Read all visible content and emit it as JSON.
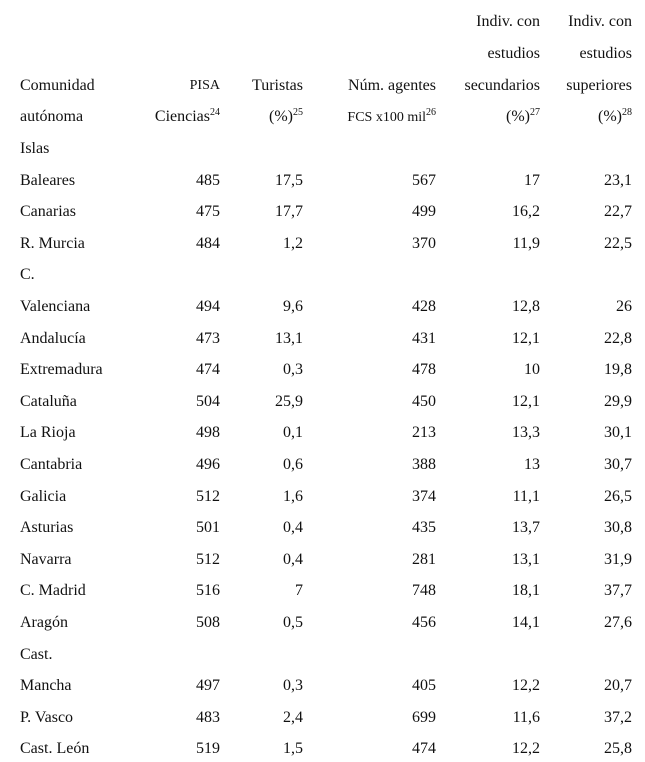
{
  "table": {
    "header": [
      {
        "lines": [
          "Comunidad",
          "autónoma"
        ]
      },
      {
        "lines": [
          "PISA",
          "Ciencias"
        ],
        "note": "24"
      },
      {
        "lines": [
          "Turistas",
          "(%)"
        ],
        "note": "25"
      },
      {
        "lines": [
          "Núm. agentes",
          "FCS x100 mil"
        ],
        "note": "26"
      },
      {
        "lines": [
          "Indiv. con",
          "estudios",
          "secundarios",
          "(%)"
        ],
        "note": "27"
      },
      {
        "lines": [
          "Indiv. con",
          "estudios",
          "superiores",
          "(%)"
        ],
        "note": "28"
      }
    ],
    "rows": [
      {
        "label": [
          "Islas",
          "Baleares"
        ],
        "values": [
          "485",
          "17,5",
          "567",
          "17",
          "23,1"
        ]
      },
      {
        "label": [
          "Canarias"
        ],
        "values": [
          "475",
          "17,7",
          "499",
          "16,2",
          "22,7"
        ]
      },
      {
        "label": [
          "R. Murcia"
        ],
        "values": [
          "484",
          "1,2",
          "370",
          "11,9",
          "22,5"
        ]
      },
      {
        "label": [
          "C.",
          "Valenciana"
        ],
        "values": [
          "494",
          "9,6",
          "428",
          "12,8",
          "26"
        ]
      },
      {
        "label": [
          "Andalucía"
        ],
        "values": [
          "473",
          "13,1",
          "431",
          "12,1",
          "22,8"
        ]
      },
      {
        "label": [
          "Extremadura"
        ],
        "values": [
          "474",
          "0,3",
          "478",
          "10",
          "19,8"
        ]
      },
      {
        "label": [
          "Cataluña"
        ],
        "values": [
          "504",
          "25,9",
          "450",
          "12,1",
          "29,9"
        ]
      },
      {
        "label": [
          "La Rioja"
        ],
        "values": [
          "498",
          "0,1",
          "213",
          "13,3",
          "30,1"
        ]
      },
      {
        "label": [
          "Cantabria"
        ],
        "values": [
          "496",
          "0,6",
          "388",
          "13",
          "30,7"
        ]
      },
      {
        "label": [
          "Galicia"
        ],
        "values": [
          "512",
          "1,6",
          "374",
          "11,1",
          "26,5"
        ]
      },
      {
        "label": [
          "Asturias"
        ],
        "values": [
          "501",
          "0,4",
          "435",
          "13,7",
          "30,8"
        ]
      },
      {
        "label": [
          "Navarra"
        ],
        "values": [
          "512",
          "0,4",
          "281",
          "13,1",
          "31,9"
        ]
      },
      {
        "label": [
          "C. Madrid"
        ],
        "values": [
          "516",
          "7",
          "748",
          "18,1",
          "37,7"
        ]
      },
      {
        "label": [
          "Aragón"
        ],
        "values": [
          "508",
          "0,5",
          "456",
          "14,1",
          "27,6"
        ]
      },
      {
        "label": [
          "Cast.",
          "Mancha"
        ],
        "values": [
          "497",
          "0,3",
          "405",
          "12,2",
          "20,7"
        ]
      },
      {
        "label": [
          "P. Vasco"
        ],
        "values": [
          "483",
          "2,4",
          "699",
          "11,6",
          "37,2"
        ]
      },
      {
        "label": [
          "Cast. León"
        ],
        "values": [
          "519",
          "1,5",
          "474",
          "12,2",
          "25,8"
        ]
      }
    ]
  }
}
